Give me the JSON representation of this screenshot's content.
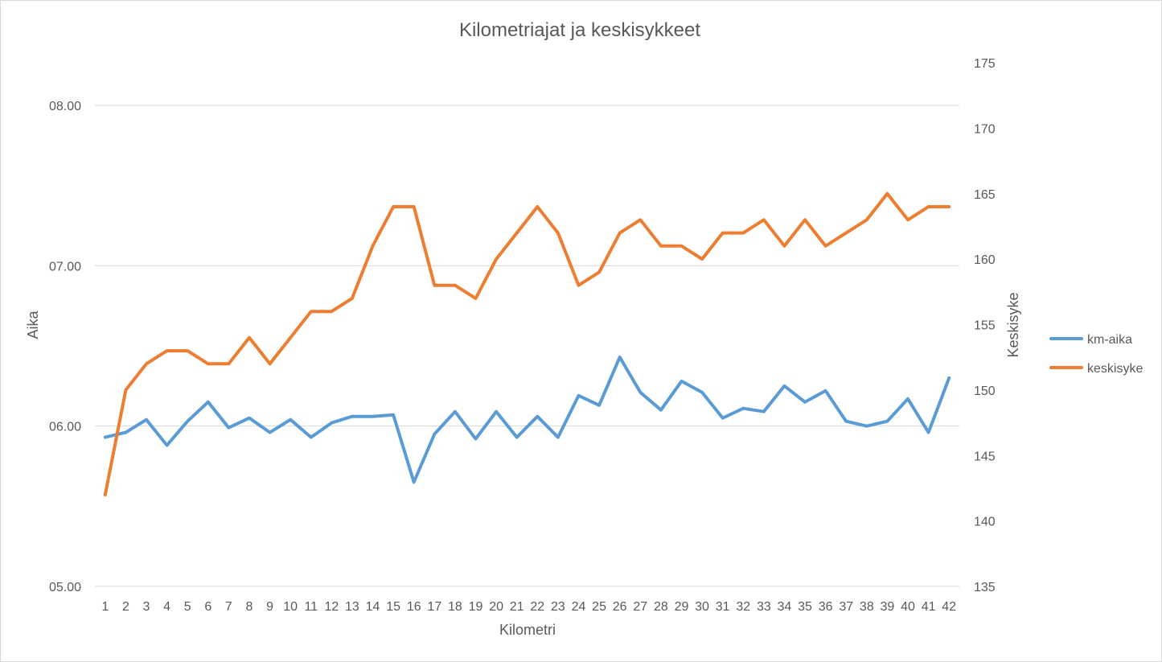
{
  "chart_data": {
    "type": "line",
    "title": "Kilometriajat ja keskisykkeet",
    "xlabel": "Kilometri",
    "ylabel_left": "Aika",
    "ylabel_right": "Keskisyke",
    "categories": [
      "1",
      "2",
      "3",
      "4",
      "5",
      "6",
      "7",
      "8",
      "9",
      "10",
      "11",
      "12",
      "13",
      "14",
      "15",
      "16",
      "17",
      "18",
      "19",
      "20",
      "21",
      "22",
      "23",
      "24",
      "25",
      "26",
      "27",
      "28",
      "29",
      "30",
      "31",
      "32",
      "33",
      "34",
      "35",
      "36",
      "37",
      "38",
      "39",
      "40",
      "41",
      "42"
    ],
    "y_left": {
      "ticks": [
        "05.00",
        "06.00",
        "07.00",
        "08.00"
      ],
      "range_minutes": [
        5,
        8
      ]
    },
    "y_right": {
      "ticks": [
        "135",
        "140",
        "145",
        "150",
        "155",
        "160",
        "165",
        "170",
        "175"
      ],
      "range": [
        135,
        175
      ]
    },
    "grid": "horizontal",
    "legend_position": "right",
    "series": [
      {
        "name": "km-aika",
        "axis": "left",
        "unit": "minutes",
        "color": "#5b9bd5",
        "values": [
          5.93,
          5.96,
          6.04,
          5.88,
          6.03,
          6.15,
          5.99,
          6.05,
          5.96,
          6.04,
          5.93,
          6.02,
          6.06,
          6.06,
          6.07,
          5.65,
          5.95,
          6.09,
          5.92,
          6.09,
          5.93,
          6.06,
          5.93,
          6.19,
          6.13,
          6.43,
          6.21,
          6.1,
          6.28,
          6.21,
          6.05,
          6.11,
          6.09,
          6.25,
          6.15,
          6.22,
          6.03,
          6.0,
          6.03,
          6.17,
          5.96,
          6.3
        ]
      },
      {
        "name": "keskisyke",
        "axis": "right",
        "unit": "bpm",
        "color": "#ed7d31",
        "values": [
          142,
          150,
          152,
          153,
          153,
          152,
          152,
          154,
          152,
          154,
          156,
          156,
          157,
          161,
          164,
          164,
          158,
          158,
          157,
          160,
          162,
          164,
          162,
          158,
          159,
          162,
          163,
          161,
          161,
          160,
          162,
          162,
          163,
          161,
          163,
          161,
          162,
          163,
          165,
          163,
          164,
          164
        ]
      }
    ]
  }
}
